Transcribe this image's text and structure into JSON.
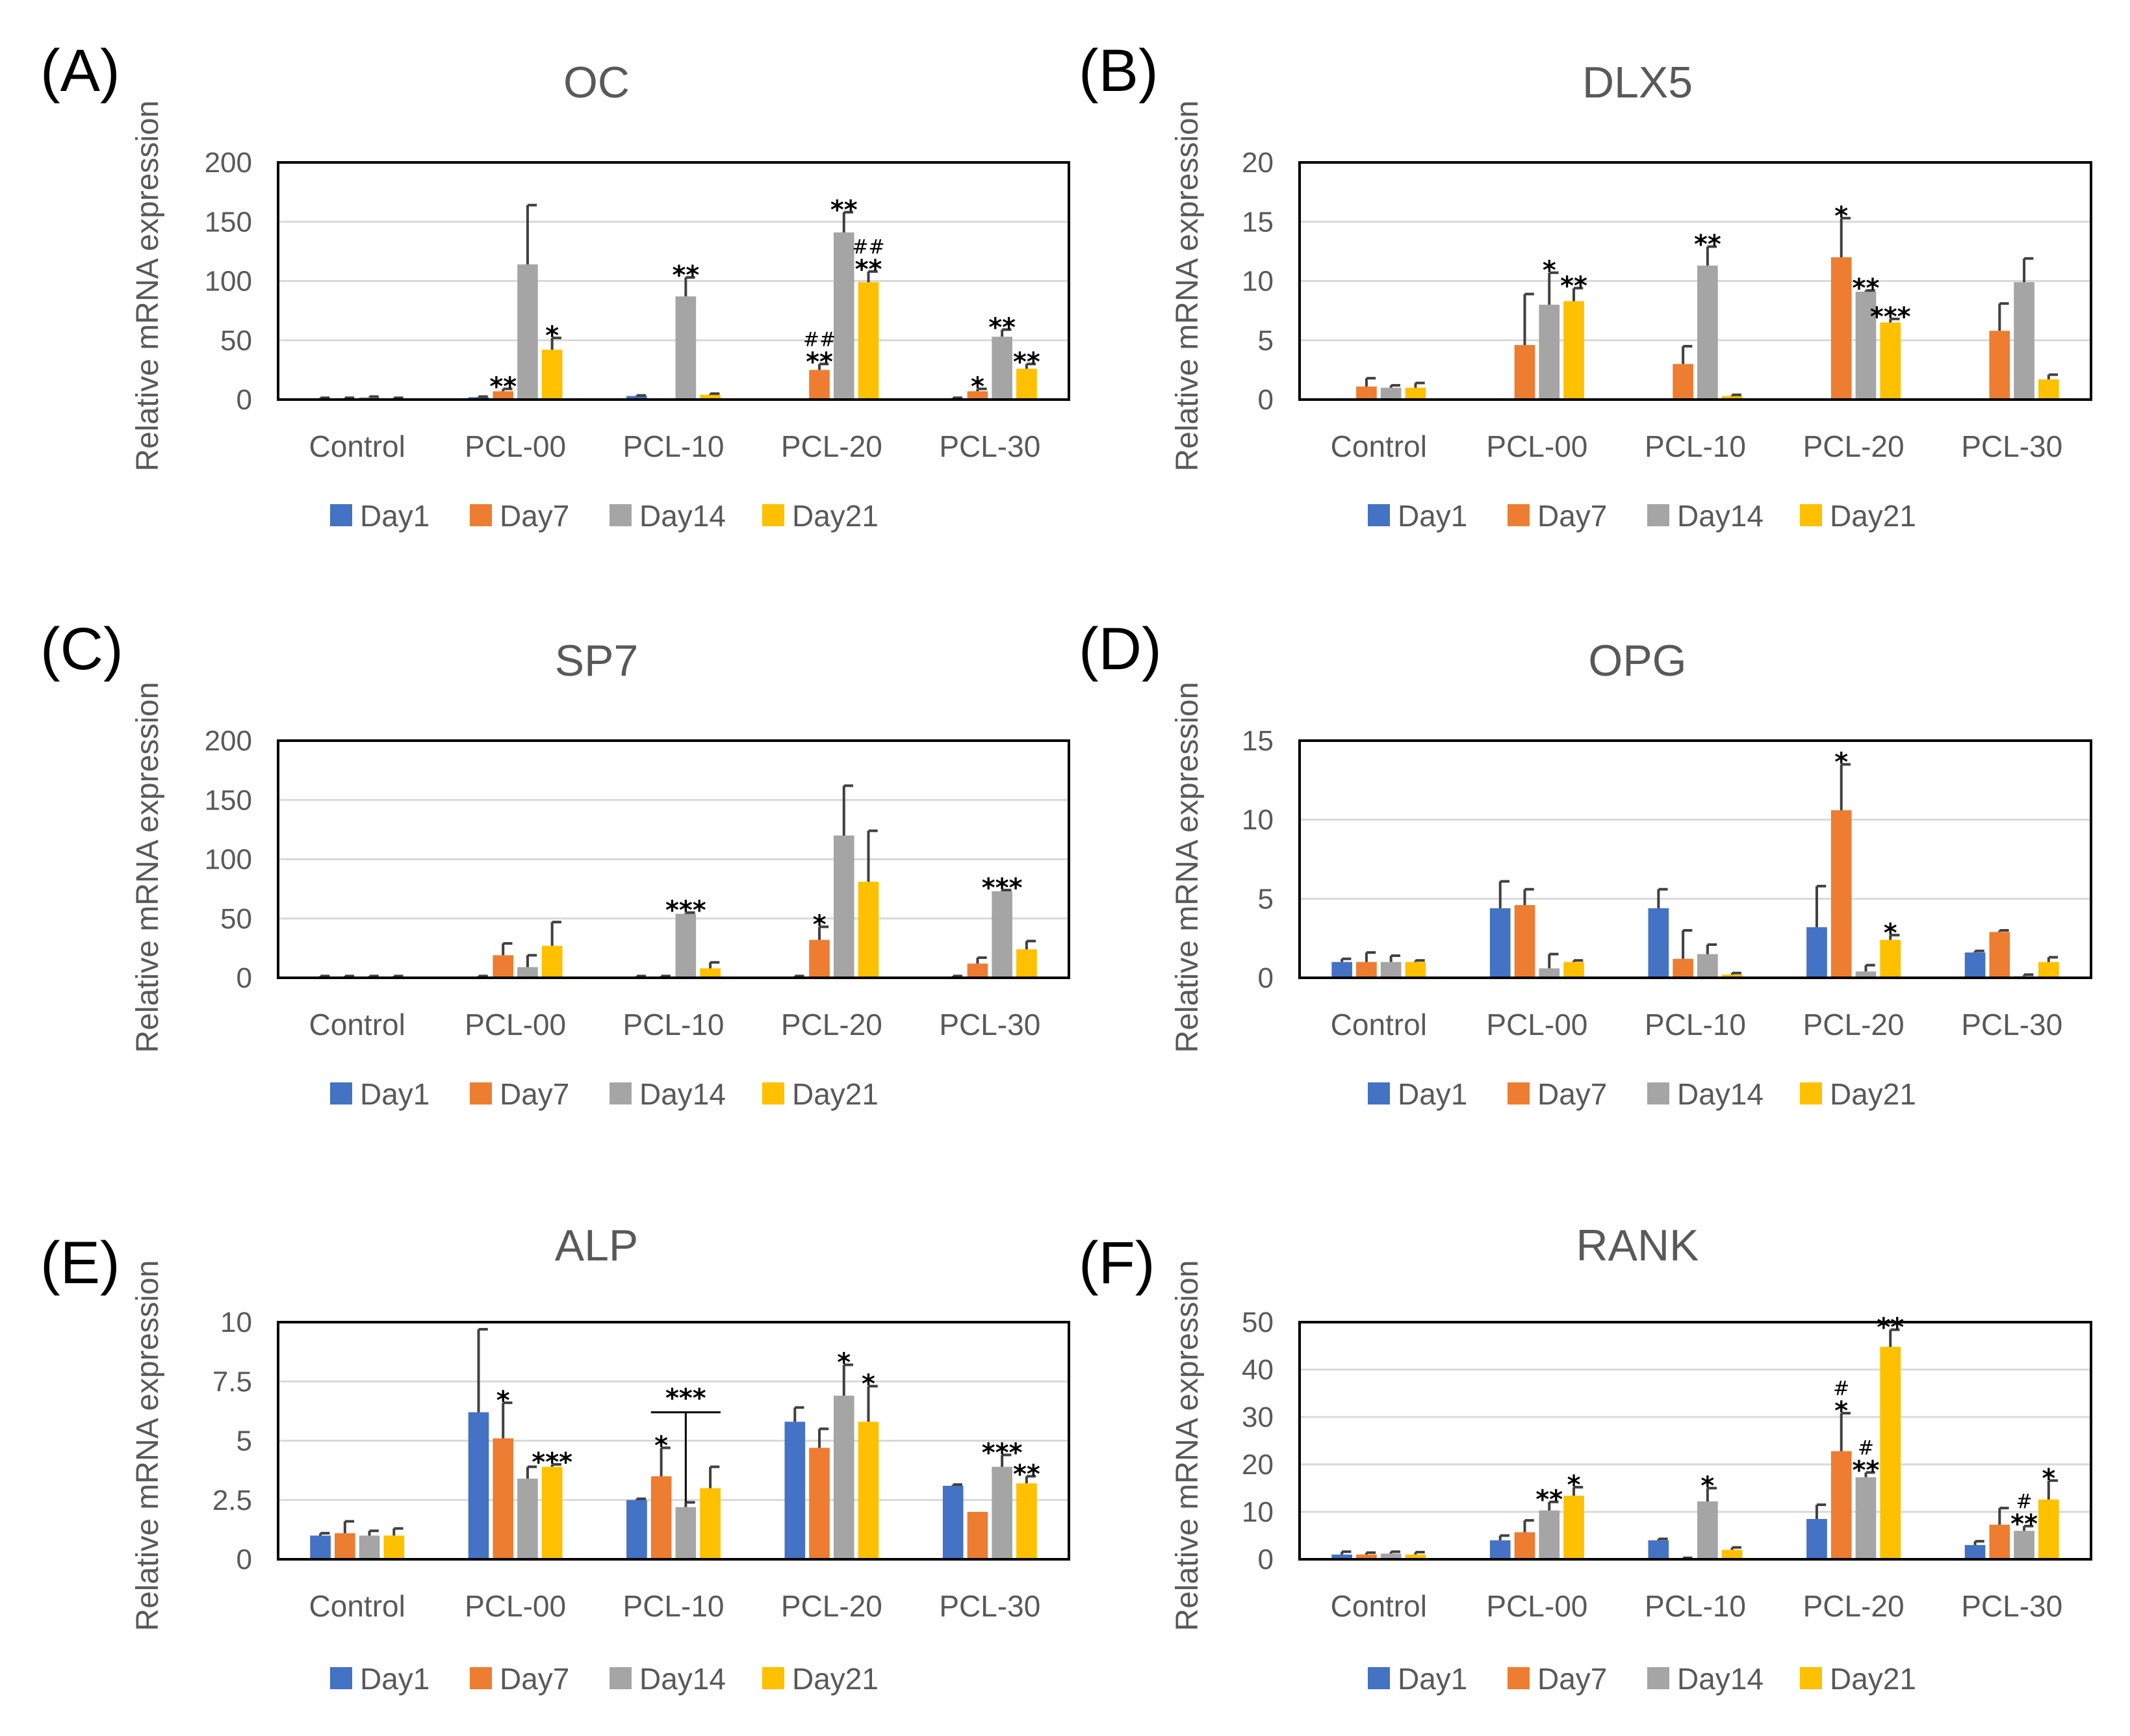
{
  "legend": [
    "Day1",
    "Day7",
    "Day14",
    "Day21"
  ],
  "colors": [
    "#4472C4",
    "#ED7D31",
    "#A5A5A5",
    "#FFC000"
  ],
  "chart_data": [
    {
      "type": "bar",
      "panel_label": "(A)",
      "title": "OC",
      "ylabel": "Relative mRNA expression",
      "ylim": [
        0,
        200
      ],
      "yticks": [
        "0",
        "50",
        "100",
        "150",
        "200"
      ],
      "yticks_values": [
        0,
        50,
        100,
        150,
        200
      ],
      "categories": [
        "Control",
        "PCL-00",
        "PCL-10",
        "PCL-20",
        "PCL-30"
      ],
      "series": [
        {
          "name": "Day1",
          "values": [
            1,
            2,
            3,
            0,
            1
          ],
          "errors": [
            0.5,
            0.5,
            0.5,
            0,
            0.5
          ]
        },
        {
          "name": "Day7",
          "values": [
            1,
            7,
            0,
            25,
            7
          ],
          "errors": [
            0.5,
            2,
            0,
            5,
            2
          ]
        },
        {
          "name": "Day14",
          "values": [
            2,
            114,
            87,
            141,
            53
          ],
          "errors": [
            0.5,
            50,
            16,
            17,
            6
          ]
        },
        {
          "name": "Day21",
          "values": [
            1,
            42,
            4,
            99,
            26
          ],
          "errors": [
            0.5,
            10,
            1,
            9,
            4
          ]
        }
      ],
      "annotations": [
        {
          "category": 1,
          "series": 1,
          "text": "**"
        },
        {
          "category": 1,
          "series": 3,
          "text": "*"
        },
        {
          "category": 2,
          "series": 2,
          "text": "**"
        },
        {
          "category": 3,
          "series": 1,
          "text": "**"
        },
        {
          "category": 3,
          "series": 1,
          "text": "##",
          "small": true,
          "stack": 1
        },
        {
          "category": 3,
          "series": 2,
          "text": "**"
        },
        {
          "category": 3,
          "series": 3,
          "text": "**"
        },
        {
          "category": 3,
          "series": 3,
          "text": "##",
          "small": true,
          "stack": 1
        },
        {
          "category": 4,
          "series": 1,
          "text": "*"
        },
        {
          "category": 4,
          "series": 2,
          "text": "**"
        },
        {
          "category": 4,
          "series": 3,
          "text": "**"
        }
      ]
    },
    {
      "type": "bar",
      "panel_label": "(B)",
      "title": "DLX5",
      "ylabel": "Relative mRNA expression",
      "ylim": [
        0,
        20
      ],
      "yticks": [
        "0",
        "5",
        "10",
        "15",
        "20"
      ],
      "yticks_values": [
        0,
        5,
        10,
        15,
        20
      ],
      "categories": [
        "Control",
        "PCL-00",
        "PCL-10",
        "PCL-20",
        "PCL-30"
      ],
      "series": [
        {
          "name": "Day1",
          "values": [
            0,
            0,
            0,
            0,
            0
          ],
          "errors": [
            0,
            0,
            0,
            0,
            0
          ]
        },
        {
          "name": "Day7",
          "values": [
            1.1,
            4.6,
            3.0,
            12.0,
            5.8
          ],
          "errors": [
            0.7,
            4.3,
            1.5,
            3.3,
            2.3
          ]
        },
        {
          "name": "Day14",
          "values": [
            1.0,
            8.0,
            11.3,
            9.1,
            9.9
          ],
          "errors": [
            0.2,
            2.7,
            1.6,
            0.1,
            2.0
          ]
        },
        {
          "name": "Day21",
          "values": [
            1.0,
            8.3,
            0.3,
            6.5,
            1.7
          ],
          "errors": [
            0.4,
            1.1,
            0.1,
            0.3,
            0.4
          ]
        }
      ],
      "annotations": [
        {
          "category": 1,
          "series": 2,
          "text": "*"
        },
        {
          "category": 1,
          "series": 3,
          "text": "**"
        },
        {
          "category": 2,
          "series": 2,
          "text": "**"
        },
        {
          "category": 3,
          "series": 1,
          "text": "*"
        },
        {
          "category": 3,
          "series": 2,
          "text": "**"
        },
        {
          "category": 3,
          "series": 3,
          "text": "***"
        }
      ]
    },
    {
      "type": "bar",
      "panel_label": "(C)",
      "title": "SP7",
      "ylabel": "Relative mRNA expression",
      "ylim": [
        0,
        200
      ],
      "yticks": [
        "0",
        "50",
        "100",
        "150",
        "200"
      ],
      "yticks_values": [
        0,
        50,
        100,
        150,
        200
      ],
      "categories": [
        "Control",
        "PCL-00",
        "PCL-10",
        "PCL-20",
        "PCL-30"
      ],
      "series": [
        {
          "name": "Day1",
          "values": [
            1,
            1,
            1,
            1,
            1
          ],
          "errors": [
            0.5,
            0.5,
            0.5,
            0.5,
            0.5
          ]
        },
        {
          "name": "Day7",
          "values": [
            1,
            19,
            1,
            32,
            12
          ],
          "errors": [
            0.5,
            10,
            0.5,
            11,
            5
          ]
        },
        {
          "name": "Day14",
          "values": [
            1,
            9,
            54,
            120,
            73
          ],
          "errors": [
            0.5,
            10,
            1,
            42,
            1
          ]
        },
        {
          "name": "Day21",
          "values": [
            1,
            27,
            8,
            81,
            24
          ],
          "errors": [
            0.5,
            20,
            5,
            43,
            7
          ]
        }
      ],
      "annotations": [
        {
          "category": 2,
          "series": 2,
          "text": "***"
        },
        {
          "category": 3,
          "series": 1,
          "text": "*"
        },
        {
          "category": 4,
          "series": 2,
          "text": "***"
        }
      ]
    },
    {
      "type": "bar",
      "panel_label": "(D)",
      "title": "OPG",
      "ylabel": "Relative mRNA expression",
      "ylim": [
        0,
        15
      ],
      "yticks": [
        "0",
        "5",
        "10",
        "15"
      ],
      "yticks_values": [
        0,
        5,
        10,
        15
      ],
      "categories": [
        "Control",
        "PCL-00",
        "PCL-10",
        "PCL-20",
        "PCL-30"
      ],
      "series": [
        {
          "name": "Day1",
          "values": [
            1.0,
            4.4,
            4.4,
            3.2,
            1.6
          ],
          "errors": [
            0.2,
            1.7,
            1.2,
            2.6,
            0.1
          ]
        },
        {
          "name": "Day7",
          "values": [
            1.0,
            4.6,
            1.2,
            10.6,
            2.9
          ],
          "errors": [
            0.6,
            1.0,
            1.8,
            2.9,
            0.1
          ]
        },
        {
          "name": "Day14",
          "values": [
            1.0,
            0.6,
            1.5,
            0.4,
            0.1
          ],
          "errors": [
            0.4,
            0.9,
            0.6,
            0.4,
            0.1
          ]
        },
        {
          "name": "Day21",
          "values": [
            1.0,
            1.0,
            0.2,
            2.4,
            1.0
          ],
          "errors": [
            0.1,
            0.1,
            0.1,
            0.3,
            0.3
          ]
        }
      ],
      "annotations": [
        {
          "category": 3,
          "series": 1,
          "text": "*"
        },
        {
          "category": 3,
          "series": 3,
          "text": "*"
        }
      ]
    },
    {
      "type": "bar",
      "panel_label": "(E)",
      "title": "ALP",
      "ylabel": "Relative mRNA expression",
      "ylim": [
        0,
        10
      ],
      "yticks": [
        "0",
        "2.5",
        "5",
        "7.5",
        "10"
      ],
      "yticks_values": [
        0,
        2.5,
        5,
        7.5,
        10
      ],
      "categories": [
        "Control",
        "PCL-00",
        "PCL-10",
        "PCL-20",
        "PCL-30"
      ],
      "series": [
        {
          "name": "Day1",
          "values": [
            1.0,
            6.2,
            2.5,
            5.8,
            3.1
          ],
          "errors": [
            0.1,
            3.5,
            0.05,
            0.6,
            0.05
          ]
        },
        {
          "name": "Day7",
          "values": [
            1.1,
            5.1,
            3.5,
            4.7,
            2.0
          ],
          "errors": [
            0.5,
            1.5,
            1.2,
            0.8,
            0
          ]
        },
        {
          "name": "Day14",
          "values": [
            1.0,
            3.4,
            2.2,
            6.9,
            3.9
          ],
          "errors": [
            0.2,
            0.5,
            0.2,
            1.3,
            0.5
          ]
        },
        {
          "name": "Day21",
          "values": [
            1.0,
            3.9,
            3.0,
            5.8,
            3.2
          ],
          "errors": [
            0.3,
            0.1,
            0.9,
            1.5,
            0.3
          ]
        }
      ],
      "annotations": [
        {
          "category": 1,
          "series": 1,
          "text": "*"
        },
        {
          "category": 1,
          "series": 3,
          "text": "***"
        },
        {
          "category": 2,
          "series": 1,
          "text": "*"
        },
        {
          "category": 3,
          "series": 2,
          "text": "*"
        },
        {
          "category": 3,
          "series": 3,
          "text": "*"
        },
        {
          "category": 4,
          "series": 2,
          "text": "***"
        },
        {
          "category": 4,
          "series": 3,
          "text": "**"
        }
      ],
      "bracket": {
        "category": 2,
        "from_series": 1,
        "to_series": 3,
        "drop_series": 2,
        "value": 6.2,
        "text": "***"
      }
    },
    {
      "type": "bar",
      "panel_label": "(F)",
      "title": "RANK",
      "ylabel": "Relative mRNA expression",
      "ylim": [
        0,
        50
      ],
      "yticks": [
        "0",
        "10",
        "20",
        "30",
        "40",
        "50"
      ],
      "yticks_values": [
        0,
        10,
        20,
        30,
        40,
        50
      ],
      "categories": [
        "Control",
        "PCL-00",
        "PCL-10",
        "PCL-20",
        "PCL-30"
      ],
      "series": [
        {
          "name": "Day1",
          "values": [
            1.0,
            4.0,
            4.0,
            8.5,
            3.0
          ],
          "errors": [
            0.6,
            1.0,
            0.3,
            3.0,
            0.8
          ]
        },
        {
          "name": "Day7",
          "values": [
            1.0,
            5.7,
            0.2,
            22.8,
            7.3
          ],
          "errors": [
            0.4,
            2.5,
            0.1,
            8.0,
            3.5
          ]
        },
        {
          "name": "Day14",
          "values": [
            1.2,
            10.3,
            12.2,
            17.3,
            6.0
          ],
          "errors": [
            0.4,
            1.8,
            2.8,
            1.0,
            1.0
          ]
        },
        {
          "name": "Day21",
          "values": [
            1.0,
            13.4,
            2.0,
            44.8,
            12.6
          ],
          "errors": [
            0.5,
            1.8,
            0.5,
            3.6,
            4.0
          ]
        }
      ],
      "annotations": [
        {
          "category": 1,
          "series": 2,
          "text": "**"
        },
        {
          "category": 1,
          "series": 3,
          "text": "*"
        },
        {
          "category": 2,
          "series": 2,
          "text": "*"
        },
        {
          "category": 3,
          "series": 1,
          "text": "*"
        },
        {
          "category": 3,
          "series": 1,
          "text": "#",
          "small": true,
          "stack": 1
        },
        {
          "category": 3,
          "series": 2,
          "text": "**"
        },
        {
          "category": 3,
          "series": 2,
          "text": "#",
          "small": true,
          "stack": 1
        },
        {
          "category": 3,
          "series": 3,
          "text": "**"
        },
        {
          "category": 4,
          "series": 2,
          "text": "**"
        },
        {
          "category": 4,
          "series": 2,
          "text": "#",
          "small": true,
          "stack": 1
        },
        {
          "category": 4,
          "series": 3,
          "text": "*"
        }
      ]
    }
  ]
}
